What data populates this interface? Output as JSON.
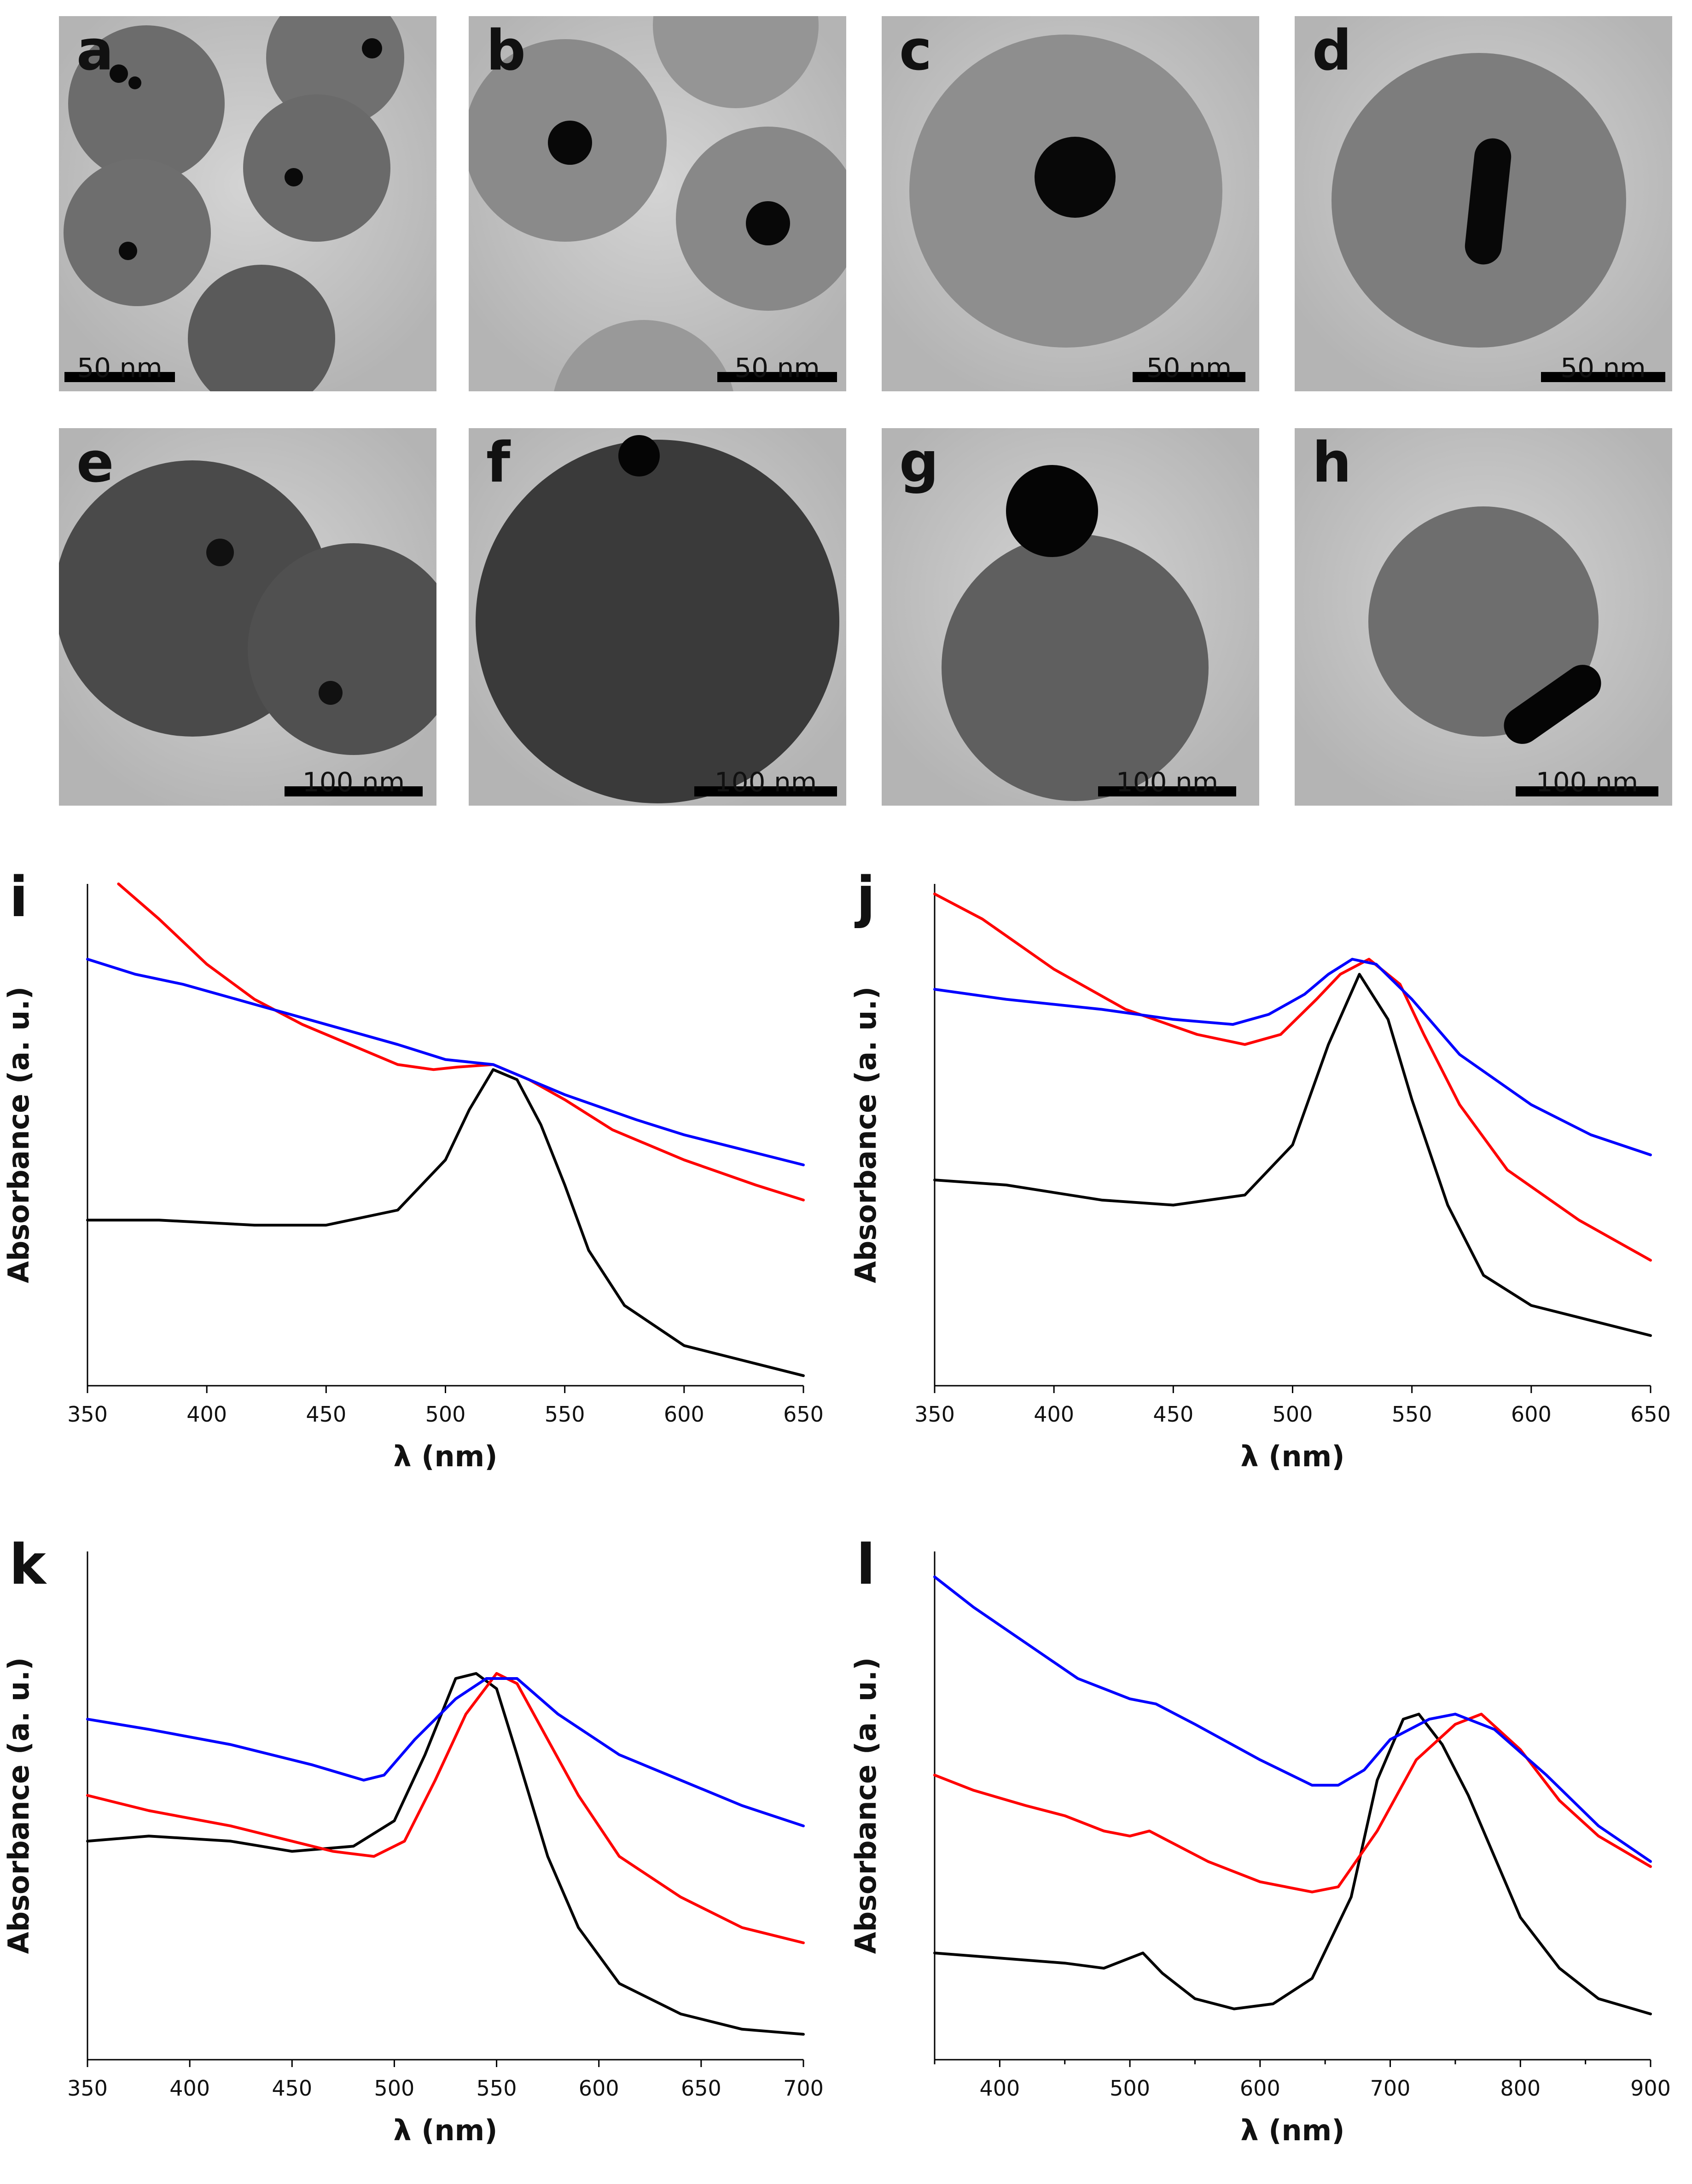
{
  "tem_panels": [
    {
      "letter": "a",
      "scale": "50 nm"
    },
    {
      "letter": "b",
      "scale": "50 nm"
    },
    {
      "letter": "c",
      "scale": "50 nm"
    },
    {
      "letter": "d",
      "scale": "50 nm"
    },
    {
      "letter": "e",
      "scale": "100 nm"
    },
    {
      "letter": "f",
      "scale": "100 nm"
    },
    {
      "letter": "g",
      "scale": "100 nm"
    },
    {
      "letter": "h",
      "scale": "100 nm"
    }
  ],
  "colors": {
    "black_series": "#000000",
    "red_series": "#ff0000",
    "blue_series": "#0000ff"
  },
  "chart_data": [
    {
      "panel": "i",
      "type": "line",
      "xlabel": "λ (nm)",
      "ylabel": "Absorbance (a. u.)",
      "xlim": [
        350,
        650
      ],
      "ylim": [
        0,
        1
      ],
      "xticks": [
        350,
        400,
        450,
        500,
        550,
        600,
        650
      ],
      "series": [
        {
          "name": "black",
          "color": "#000000",
          "points": [
            [
              350,
              0.33
            ],
            [
              380,
              0.33
            ],
            [
              420,
              0.32
            ],
            [
              450,
              0.32
            ],
            [
              480,
              0.35
            ],
            [
              500,
              0.45
            ],
            [
              510,
              0.55
            ],
            [
              520,
              0.63
            ],
            [
              530,
              0.61
            ],
            [
              540,
              0.52
            ],
            [
              550,
              0.4
            ],
            [
              560,
              0.27
            ],
            [
              575,
              0.16
            ],
            [
              600,
              0.08
            ],
            [
              625,
              0.05
            ],
            [
              650,
              0.02
            ]
          ]
        },
        {
          "name": "red",
          "color": "#ff0000",
          "points": [
            [
              363,
              1.0
            ],
            [
              380,
              0.93
            ],
            [
              400,
              0.84
            ],
            [
              420,
              0.77
            ],
            [
              440,
              0.72
            ],
            [
              460,
              0.68
            ],
            [
              480,
              0.64
            ],
            [
              495,
              0.63
            ],
            [
              505,
              0.635
            ],
            [
              520,
              0.64
            ],
            [
              535,
              0.61
            ],
            [
              550,
              0.57
            ],
            [
              570,
              0.51
            ],
            [
              600,
              0.45
            ],
            [
              630,
              0.4
            ],
            [
              650,
              0.37
            ]
          ]
        },
        {
          "name": "blue",
          "color": "#0000ff",
          "points": [
            [
              350,
              0.85
            ],
            [
              370,
              0.82
            ],
            [
              390,
              0.8
            ],
            [
              420,
              0.76
            ],
            [
              450,
              0.72
            ],
            [
              480,
              0.68
            ],
            [
              500,
              0.65
            ],
            [
              520,
              0.64
            ],
            [
              535,
              0.61
            ],
            [
              550,
              0.58
            ],
            [
              580,
              0.53
            ],
            [
              600,
              0.5
            ],
            [
              625,
              0.47
            ],
            [
              650,
              0.44
            ]
          ]
        }
      ]
    },
    {
      "panel": "j",
      "type": "line",
      "xlabel": "λ (nm)",
      "ylabel": "Absorbance (a. u.)",
      "xlim": [
        350,
        650
      ],
      "ylim": [
        0,
        1
      ],
      "xticks": [
        350,
        400,
        450,
        500,
        550,
        600,
        650
      ],
      "series": [
        {
          "name": "black",
          "color": "#000000",
          "points": [
            [
              350,
              0.41
            ],
            [
              380,
              0.4
            ],
            [
              420,
              0.37
            ],
            [
              450,
              0.36
            ],
            [
              480,
              0.38
            ],
            [
              500,
              0.48
            ],
            [
              515,
              0.68
            ],
            [
              528,
              0.82
            ],
            [
              540,
              0.73
            ],
            [
              550,
              0.57
            ],
            [
              565,
              0.36
            ],
            [
              580,
              0.22
            ],
            [
              600,
              0.16
            ],
            [
              625,
              0.13
            ],
            [
              650,
              0.1
            ]
          ]
        },
        {
          "name": "red",
          "color": "#ff0000",
          "points": [
            [
              350,
              0.98
            ],
            [
              370,
              0.93
            ],
            [
              400,
              0.83
            ],
            [
              430,
              0.75
            ],
            [
              460,
              0.7
            ],
            [
              480,
              0.68
            ],
            [
              495,
              0.7
            ],
            [
              510,
              0.77
            ],
            [
              520,
              0.82
            ],
            [
              532,
              0.85
            ],
            [
              545,
              0.8
            ],
            [
              555,
              0.7
            ],
            [
              570,
              0.56
            ],
            [
              590,
              0.43
            ],
            [
              620,
              0.33
            ],
            [
              650,
              0.25
            ]
          ]
        },
        {
          "name": "blue",
          "color": "#0000ff",
          "points": [
            [
              350,
              0.79
            ],
            [
              380,
              0.77
            ],
            [
              420,
              0.75
            ],
            [
              450,
              0.73
            ],
            [
              475,
              0.72
            ],
            [
              490,
              0.74
            ],
            [
              505,
              0.78
            ],
            [
              515,
              0.82
            ],
            [
              525,
              0.85
            ],
            [
              535,
              0.84
            ],
            [
              550,
              0.77
            ],
            [
              570,
              0.66
            ],
            [
              600,
              0.56
            ],
            [
              625,
              0.5
            ],
            [
              650,
              0.46
            ]
          ]
        }
      ]
    },
    {
      "panel": "k",
      "type": "line",
      "xlabel": "λ (nm)",
      "ylabel": "Absorbance (a. u.)",
      "xlim": [
        350,
        700
      ],
      "ylim": [
        0,
        1
      ],
      "xticks": [
        350,
        400,
        450,
        500,
        550,
        600,
        650,
        700
      ],
      "series": [
        {
          "name": "black",
          "color": "#000000",
          "points": [
            [
              350,
              0.43
            ],
            [
              380,
              0.44
            ],
            [
              420,
              0.43
            ],
            [
              450,
              0.41
            ],
            [
              480,
              0.42
            ],
            [
              500,
              0.47
            ],
            [
              515,
              0.6
            ],
            [
              530,
              0.75
            ],
            [
              540,
              0.76
            ],
            [
              550,
              0.73
            ],
            [
              560,
              0.6
            ],
            [
              575,
              0.4
            ],
            [
              590,
              0.26
            ],
            [
              610,
              0.15
            ],
            [
              640,
              0.09
            ],
            [
              670,
              0.06
            ],
            [
              700,
              0.05
            ]
          ]
        },
        {
          "name": "red",
          "color": "#ff0000",
          "points": [
            [
              350,
              0.52
            ],
            [
              380,
              0.49
            ],
            [
              420,
              0.46
            ],
            [
              450,
              0.43
            ],
            [
              470,
              0.41
            ],
            [
              490,
              0.4
            ],
            [
              505,
              0.43
            ],
            [
              520,
              0.55
            ],
            [
              535,
              0.68
            ],
            [
              550,
              0.76
            ],
            [
              560,
              0.74
            ],
            [
              575,
              0.63
            ],
            [
              590,
              0.52
            ],
            [
              610,
              0.4
            ],
            [
              640,
              0.32
            ],
            [
              670,
              0.26
            ],
            [
              700,
              0.23
            ]
          ]
        },
        {
          "name": "blue",
          "color": "#0000ff",
          "points": [
            [
              350,
              0.67
            ],
            [
              380,
              0.65
            ],
            [
              420,
              0.62
            ],
            [
              460,
              0.58
            ],
            [
              485,
              0.55
            ],
            [
              495,
              0.56
            ],
            [
              510,
              0.63
            ],
            [
              530,
              0.71
            ],
            [
              545,
              0.75
            ],
            [
              560,
              0.75
            ],
            [
              580,
              0.68
            ],
            [
              610,
              0.6
            ],
            [
              640,
              0.55
            ],
            [
              670,
              0.5
            ],
            [
              700,
              0.46
            ]
          ]
        }
      ]
    },
    {
      "panel": "l",
      "type": "line",
      "xlabel": "λ (nm)",
      "ylabel": "Absorbance (a. u.)",
      "xlim": [
        350,
        900
      ],
      "ylim": [
        0,
        1
      ],
      "xticks": [
        400,
        500,
        600,
        700,
        800,
        900
      ],
      "series": [
        {
          "name": "black",
          "color": "#000000",
          "points": [
            [
              350,
              0.21
            ],
            [
              400,
              0.2
            ],
            [
              450,
              0.19
            ],
            [
              480,
              0.18
            ],
            [
              500,
              0.2
            ],
            [
              510,
              0.21
            ],
            [
              525,
              0.17
            ],
            [
              550,
              0.12
            ],
            [
              580,
              0.1
            ],
            [
              610,
              0.11
            ],
            [
              640,
              0.16
            ],
            [
              670,
              0.32
            ],
            [
              690,
              0.55
            ],
            [
              710,
              0.67
            ],
            [
              722,
              0.68
            ],
            [
              740,
              0.62
            ],
            [
              760,
              0.52
            ],
            [
              780,
              0.4
            ],
            [
              800,
              0.28
            ],
            [
              830,
              0.18
            ],
            [
              860,
              0.12
            ],
            [
              900,
              0.09
            ]
          ]
        },
        {
          "name": "red",
          "color": "#ff0000",
          "points": [
            [
              350,
              0.56
            ],
            [
              380,
              0.53
            ],
            [
              420,
              0.5
            ],
            [
              450,
              0.48
            ],
            [
              480,
              0.45
            ],
            [
              500,
              0.44
            ],
            [
              515,
              0.45
            ],
            [
              530,
              0.43
            ],
            [
              560,
              0.39
            ],
            [
              600,
              0.35
            ],
            [
              640,
              0.33
            ],
            [
              660,
              0.34
            ],
            [
              690,
              0.45
            ],
            [
              720,
              0.59
            ],
            [
              750,
              0.66
            ],
            [
              770,
              0.68
            ],
            [
              800,
              0.61
            ],
            [
              830,
              0.51
            ],
            [
              860,
              0.44
            ],
            [
              900,
              0.38
            ]
          ]
        },
        {
          "name": "blue",
          "color": "#0000ff",
          "points": [
            [
              350,
              0.95
            ],
            [
              380,
              0.89
            ],
            [
              420,
              0.82
            ],
            [
              460,
              0.75
            ],
            [
              500,
              0.71
            ],
            [
              520,
              0.7
            ],
            [
              550,
              0.66
            ],
            [
              600,
              0.59
            ],
            [
              640,
              0.54
            ],
            [
              660,
              0.54
            ],
            [
              680,
              0.57
            ],
            [
              700,
              0.63
            ],
            [
              730,
              0.67
            ],
            [
              750,
              0.68
            ],
            [
              780,
              0.65
            ],
            [
              820,
              0.56
            ],
            [
              860,
              0.46
            ],
            [
              900,
              0.39
            ]
          ]
        }
      ]
    }
  ]
}
